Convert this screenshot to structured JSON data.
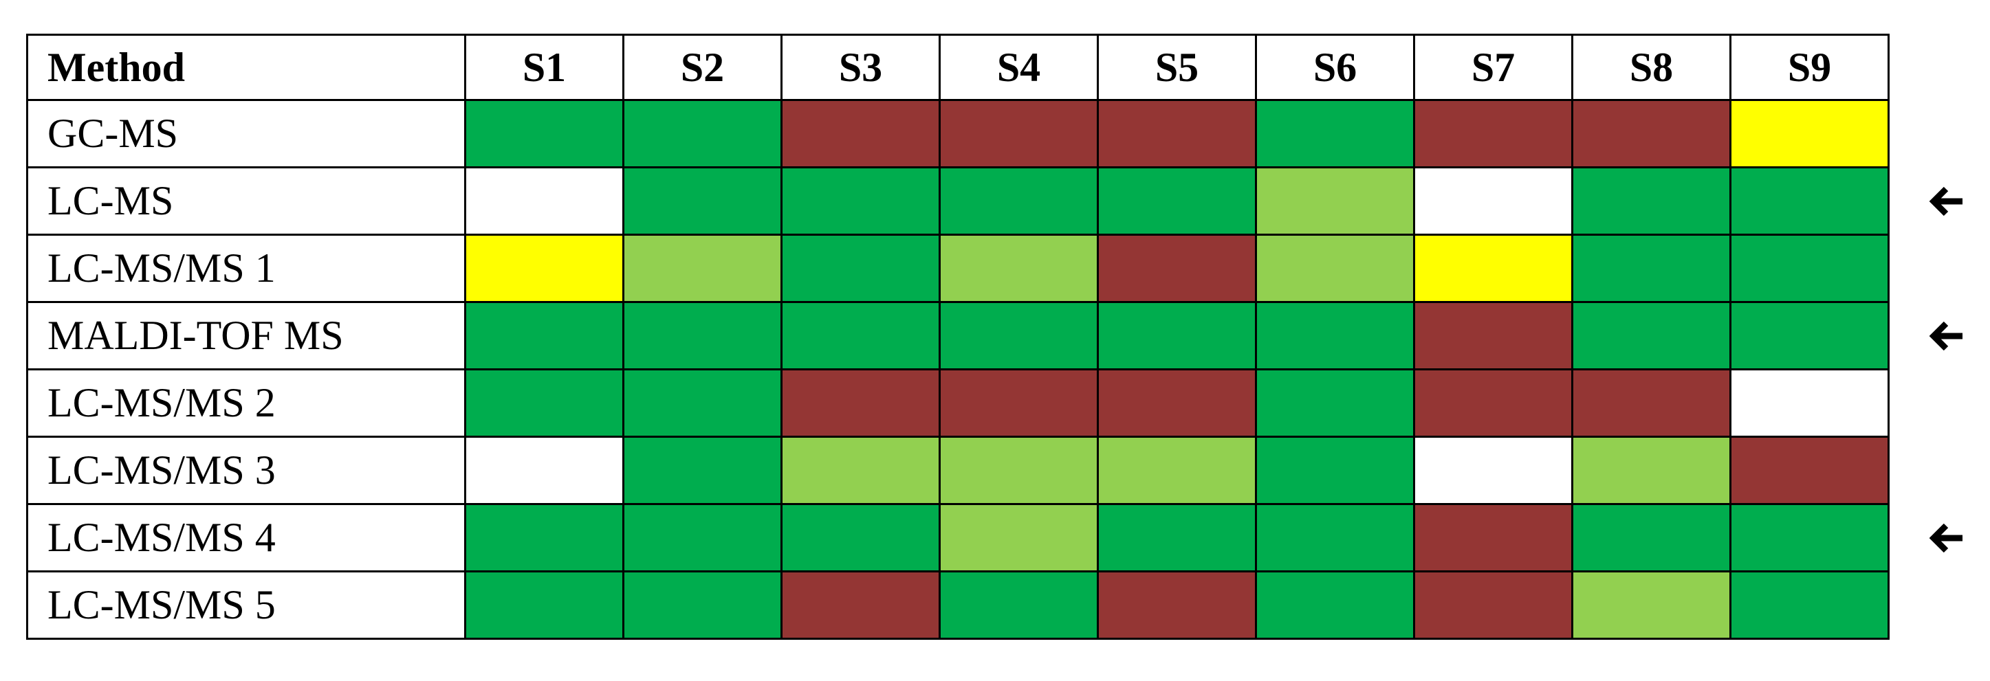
{
  "chart_data": {
    "type": "heatmap",
    "row_header": "Method",
    "columns": [
      "S1",
      "S2",
      "S3",
      "S4",
      "S5",
      "S6",
      "S7",
      "S8",
      "S9"
    ],
    "rows": [
      {
        "label": "GC-MS",
        "cells": [
          "dark-green",
          "dark-green",
          "dark-red",
          "dark-red",
          "dark-red",
          "dark-green",
          "dark-red",
          "dark-red",
          "yellow"
        ],
        "arrow": false
      },
      {
        "label": "LC-MS",
        "cells": [
          "white",
          "dark-green",
          "dark-green",
          "dark-green",
          "dark-green",
          "light-green",
          "white",
          "dark-green",
          "dark-green"
        ],
        "arrow": true
      },
      {
        "label": "LC-MS/MS 1",
        "cells": [
          "yellow",
          "light-green",
          "dark-green",
          "light-green",
          "dark-red",
          "light-green",
          "yellow",
          "dark-green",
          "dark-green"
        ],
        "arrow": false
      },
      {
        "label": "MALDI-TOF MS",
        "cells": [
          "dark-green",
          "dark-green",
          "dark-green",
          "dark-green",
          "dark-green",
          "dark-green",
          "dark-red",
          "dark-green",
          "dark-green"
        ],
        "arrow": true
      },
      {
        "label": "LC-MS/MS 2",
        "cells": [
          "dark-green",
          "dark-green",
          "dark-red",
          "dark-red",
          "dark-red",
          "dark-green",
          "dark-red",
          "dark-red",
          "white"
        ],
        "arrow": false
      },
      {
        "label": "LC-MS/MS 3",
        "cells": [
          "white",
          "dark-green",
          "light-green",
          "light-green",
          "light-green",
          "dark-green",
          "white",
          "light-green",
          "dark-red"
        ],
        "arrow": false
      },
      {
        "label": "LC-MS/MS 4",
        "cells": [
          "dark-green",
          "dark-green",
          "dark-green",
          "light-green",
          "dark-green",
          "dark-green",
          "dark-red",
          "dark-green",
          "dark-green"
        ],
        "arrow": true
      },
      {
        "label": "LC-MS/MS 5",
        "cells": [
          "dark-green",
          "dark-green",
          "dark-red",
          "dark-green",
          "dark-red",
          "dark-green",
          "dark-red",
          "light-green",
          "dark-green"
        ],
        "arrow": false
      }
    ],
    "colors": {
      "dark-green": "#00ad4e",
      "light-green": "#92d050",
      "dark-red": "#943634",
      "yellow": "#ffff00",
      "white": "#ffffff"
    },
    "arrow_icon": "left-arrow-icon"
  }
}
